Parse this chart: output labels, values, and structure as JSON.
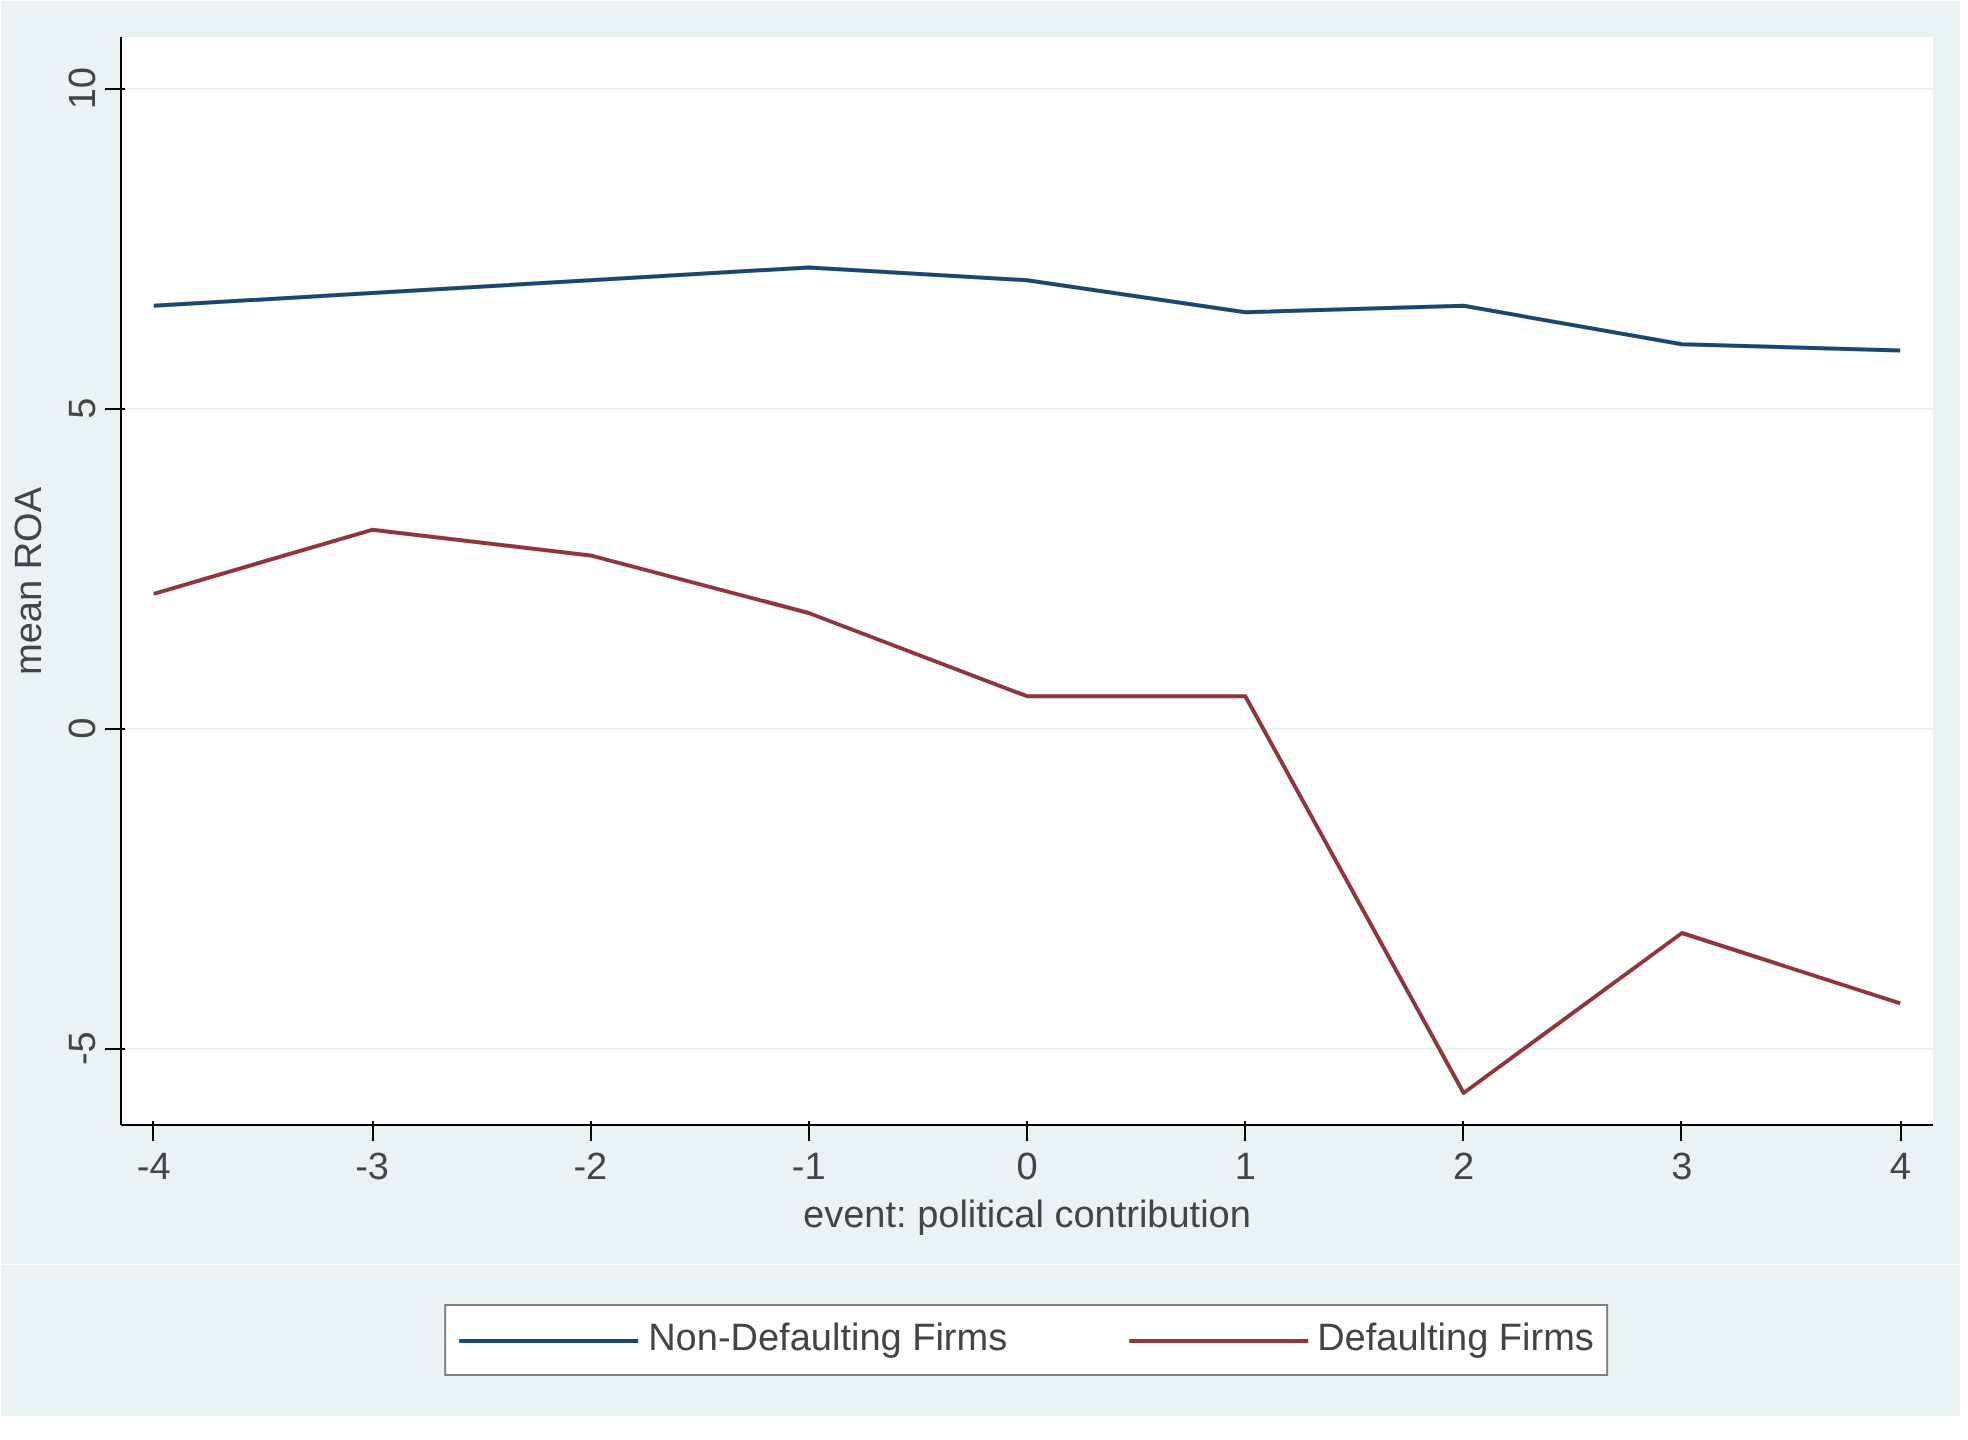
{
  "chart_data": {
    "type": "line",
    "xlabel": "event: political contribution",
    "ylabel": "mean ROA",
    "x": [
      -4,
      -3,
      -2,
      -1,
      0,
      1,
      2,
      3,
      4
    ],
    "series": [
      {
        "name": "Non-Defaulting Firms",
        "color": "#1a476f",
        "values": [
          6.6,
          6.8,
          7.0,
          7.2,
          7.0,
          6.5,
          6.6,
          6.0,
          5.9
        ]
      },
      {
        "name": "Defaulting Firms",
        "color": "#90353b",
        "values": [
          2.1,
          3.1,
          2.7,
          1.8,
          0.5,
          0.5,
          -5.7,
          -3.2,
          -4.3
        ]
      }
    ],
    "xlim": [
      -4.15,
      4.15
    ],
    "ylim": [
      -6.2,
      10.8
    ],
    "xticks": [
      -4,
      -3,
      -2,
      -1,
      0,
      1,
      2,
      3,
      4
    ],
    "yticks": [
      -5,
      0,
      5,
      10
    ],
    "grid": "y",
    "legend": "bottom",
    "marker": "none",
    "line_style": "solid"
  }
}
